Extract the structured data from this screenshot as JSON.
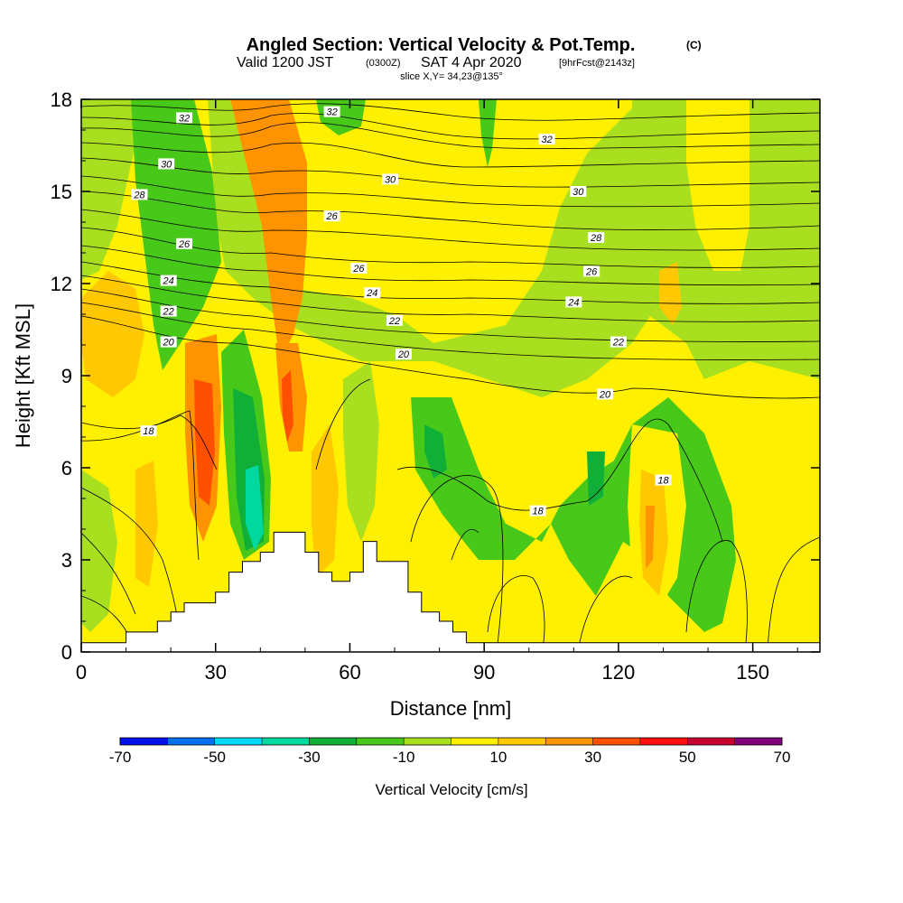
{
  "title": {
    "main": "Angled Section: Vertical Velocity & Pot.Temp.",
    "copyright": "(C)",
    "valid_prefix": "Valid 1200 JST",
    "valid_utc": "(0300Z)",
    "valid_date": "SAT 4 Apr 2020",
    "forecast": "[9hrFcst@2143z]",
    "slice": "slice X,Y= 34,23@135°"
  },
  "chart_data": {
    "type": "heatmap",
    "xlabel": "Distance [nm]",
    "ylabel": "Height [Kft MSL]",
    "xlim": [
      0,
      165
    ],
    "ylim": [
      0,
      18
    ],
    "x_ticks": [
      "0",
      "30",
      "60",
      "90",
      "120",
      "150"
    ],
    "y_ticks": [
      "0",
      "3",
      "6",
      "9",
      "12",
      "15",
      "18"
    ],
    "colorbar": {
      "label": "Vertical Velocity [cm/s]",
      "tick_labels": [
        "-70",
        "-50",
        "-30",
        "-10",
        "10",
        "30",
        "50",
        "70"
      ],
      "bins": [
        -70,
        -60,
        -50,
        -40,
        -30,
        -20,
        -10,
        0,
        10,
        20,
        30,
        40,
        50,
        60,
        70
      ],
      "colors": [
        "#0010e8",
        "#0070f0",
        "#00d8f8",
        "#00d8a0",
        "#10b038",
        "#48c818",
        "#a8e020",
        "#fff000",
        "#ffc800",
        "#ff9400",
        "#ff5000",
        "#ff1010",
        "#c80030",
        "#800078"
      ]
    },
    "terrain_profile": {
      "x_nm": [
        0,
        10,
        10,
        17,
        17,
        20,
        20,
        23,
        23,
        30,
        30,
        33,
        33,
        36,
        36,
        40,
        40,
        43,
        43,
        50,
        50,
        53,
        53,
        56,
        56,
        60,
        60,
        63,
        63,
        66,
        66,
        73,
        73,
        76,
        76,
        80,
        80,
        83,
        83,
        86,
        86,
        90,
        90,
        165
      ],
      "height_kft": [
        0.3,
        0.3,
        0.65,
        0.65,
        1.0,
        1.0,
        1.3,
        1.3,
        1.6,
        1.6,
        1.95,
        1.95,
        2.6,
        2.6,
        2.95,
        2.95,
        3.25,
        3.25,
        3.9,
        3.9,
        3.25,
        3.25,
        2.6,
        2.6,
        2.3,
        2.3,
        2.6,
        2.6,
        3.6,
        3.6,
        2.95,
        2.95,
        1.95,
        1.95,
        1.3,
        1.3,
        1.0,
        1.0,
        0.65,
        0.65,
        0.3,
        0.3,
        0.3,
        0.3
      ]
    },
    "theta_contours_K": [
      18,
      20,
      22,
      24,
      26,
      28,
      30,
      32
    ],
    "contour_labels": [
      {
        "text": "32",
        "x": 23,
        "y": 17.4
      },
      {
        "text": "30",
        "x": 19,
        "y": 15.9
      },
      {
        "text": "28",
        "x": 13,
        "y": 14.9
      },
      {
        "text": "26",
        "x": 23,
        "y": 13.3
      },
      {
        "text": "24",
        "x": 19.5,
        "y": 12.1
      },
      {
        "text": "22",
        "x": 19.5,
        "y": 11.1
      },
      {
        "text": "20",
        "x": 19.5,
        "y": 10.1
      },
      {
        "text": "18",
        "x": 15,
        "y": 7.2
      },
      {
        "text": "32",
        "x": 56,
        "y": 17.6
      },
      {
        "text": "30",
        "x": 69,
        "y": 15.4
      },
      {
        "text": "26",
        "x": 56,
        "y": 14.2
      },
      {
        "text": "26",
        "x": 62,
        "y": 12.5
      },
      {
        "text": "24",
        "x": 65,
        "y": 11.7
      },
      {
        "text": "22",
        "x": 70,
        "y": 10.8
      },
      {
        "text": "20",
        "x": 72,
        "y": 9.7
      },
      {
        "text": "32",
        "x": 104,
        "y": 16.7
      },
      {
        "text": "30",
        "x": 111,
        "y": 15.0
      },
      {
        "text": "28",
        "x": 115,
        "y": 13.5
      },
      {
        "text": "26",
        "x": 114,
        "y": 12.4
      },
      {
        "text": "24",
        "x": 110,
        "y": 11.4
      },
      {
        "text": "22",
        "x": 120,
        "y": 10.1
      },
      {
        "text": "20",
        "x": 117,
        "y": 8.4
      },
      {
        "text": "18",
        "x": 102,
        "y": 4.6
      },
      {
        "text": "18",
        "x": 130,
        "y": 5.6
      }
    ]
  }
}
